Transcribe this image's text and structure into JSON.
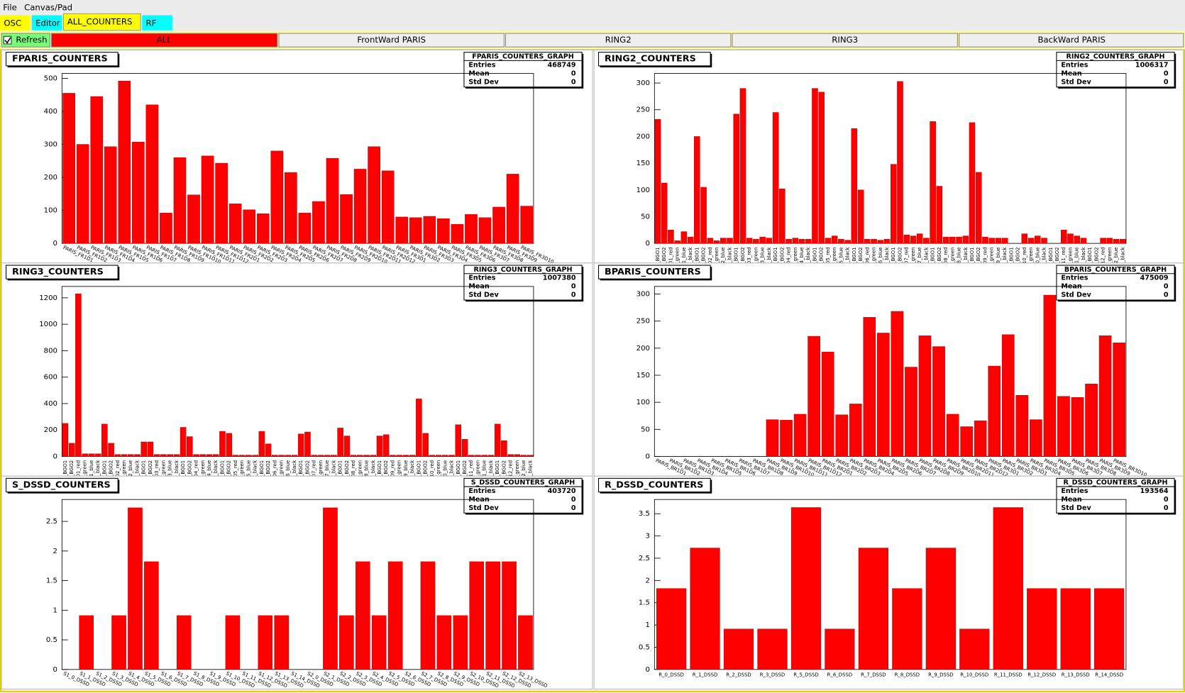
{
  "ui": {
    "menu": [
      "File",
      "Canvas/Pad"
    ],
    "tabs": [
      "OSC",
      "Editor",
      "ALL_COUNTERS",
      "RF"
    ],
    "refresh": "Refresh",
    "buttons": [
      "ALL",
      "FrontWard PARIS",
      "RING2",
      "RING3",
      "BackWard PARIS"
    ]
  },
  "chart_data": [
    {
      "type": "bar",
      "title": "FPARIS_COUNTERS",
      "color": "#ff0000",
      "stats": {
        "title": "FPARIS_COUNTERS_GRAPH",
        "rows": [
          {
            "label": "Entries",
            "value": 468749
          },
          {
            "label": "Mean",
            "value": 0
          },
          {
            "label": "Std Dev",
            "value": 0
          }
        ]
      },
      "categories": [
        "PARIS_FR1D1",
        "PARIS_FR1D2",
        "PARIS_FR1D3",
        "PARIS_FR1D4",
        "PARIS_FR1D5",
        "PARIS_FR1D6",
        "PARIS_FR1D7",
        "PARIS_FR1D8",
        "PARIS_FR1D9",
        "PARIS_FR1D10",
        "PARIS_FR1D11",
        "PARIS_FR1D12",
        "PARIS_FR2D1",
        "PARIS_FR2D2",
        "PARIS_FR2D3",
        "PARIS_FR2D4",
        "PARIS_FR2D5",
        "PARIS_FR2D6",
        "PARIS_FR2D7",
        "PARIS_FR2D8",
        "PARIS_FR2D9",
        "PARIS_FR2D10",
        "PARIS_FR2D11",
        "PARIS_FR2D12",
        "PARIS_FR3D1",
        "PARIS_FR3D2",
        "PARIS_FR3D3",
        "PARIS_FR3D4",
        "PARIS_FR3D5",
        "PARIS_FR3D6",
        "PARIS_FR3D7",
        "PARIS_FR3D8",
        "PARIS_FR3D9",
        "PARIS_FR3D10"
      ],
      "values": [
        455,
        300,
        445,
        293,
        492,
        307,
        420,
        92,
        260,
        147,
        265,
        243,
        120,
        102,
        90,
        280,
        215,
        92,
        127,
        258,
        148,
        225,
        293,
        220,
        80,
        78,
        82,
        75,
        58,
        88,
        78,
        110,
        210,
        113
      ],
      "ylim": [
        0,
        515
      ],
      "yticks": [
        0,
        100,
        200,
        300,
        400,
        500
      ]
    },
    {
      "type": "bar",
      "title": "RING2_COUNTERS",
      "color": "#ff0000",
      "stats": {
        "title": "RING2_COUNTERS_GRAPH",
        "rows": [
          {
            "label": "Entries",
            "value": 1006317
          },
          {
            "label": "Mean",
            "value": 0
          },
          {
            "label": "Std Dev",
            "value": 0
          }
        ]
      },
      "categories": [
        "D1_BGO1",
        "D1_BGO2",
        "D1_red",
        "D1_green",
        "D1_blue",
        "D1_black",
        "D2_BGO1",
        "D2_BGO2",
        "D2_red",
        "D2_green",
        "D2_blue",
        "D2_black",
        "D3_BGO1",
        "D3_BGO2",
        "D3_red",
        "D3_green",
        "D3_blue",
        "D3_black",
        "D4_BGO1",
        "D4_BGO2",
        "D4_red",
        "D4_green",
        "D4_blue",
        "D4_black",
        "D5_BGO1",
        "D5_BGO2",
        "D5_red",
        "D5_green",
        "D5_blue",
        "D5_black",
        "D6_BGO1",
        "D6_BGO2",
        "D6_red",
        "D6_green",
        "D6_blue",
        "D6_black",
        "D7_BGO1",
        "D7_BGO2",
        "D7_red",
        "D7_green",
        "D7_blue",
        "D7_black",
        "D8_BGO1",
        "D8_BGO2",
        "D8_red",
        "D8_green",
        "D8_blue",
        "D8_black",
        "D9_BGO1",
        "D9_BGO2",
        "D9_red",
        "D9_green",
        "D9_blue",
        "D9_black",
        "D10_BGO1",
        "D10_BGO2",
        "D10_red",
        "D10_green",
        "D10_blue",
        "D10_black",
        "D11_BGO1",
        "D11_BGO2",
        "D11_red",
        "D11_green",
        "D11_blue",
        "D11_black",
        "D12_BGO1",
        "D12_BGO2",
        "D12_red",
        "D12_green",
        "D12_blue",
        "D12_black"
      ],
      "values": [
        232,
        113,
        25,
        5,
        22,
        12,
        200,
        105,
        10,
        5,
        10,
        10,
        242,
        290,
        10,
        8,
        12,
        10,
        245,
        102,
        8,
        10,
        8,
        8,
        290,
        283,
        10,
        14,
        8,
        6,
        215,
        100,
        8,
        8,
        6,
        8,
        148,
        303,
        16,
        14,
        18,
        10,
        228,
        107,
        12,
        12,
        12,
        14,
        226,
        133,
        12,
        10,
        10,
        10,
        0,
        0,
        18,
        10,
        14,
        10,
        0,
        0,
        25,
        18,
        14,
        10,
        0,
        0,
        10,
        10,
        8,
        8
      ],
      "ylim": [
        0,
        318
      ],
      "yticks": [
        0,
        50,
        100,
        150,
        200,
        250,
        300
      ]
    },
    {
      "type": "bar",
      "title": "RING3_COUNTERS",
      "color": "#ff0000",
      "stats": {
        "title": "RING3_COUNTERS_GRAPH",
        "rows": [
          {
            "label": "Entries",
            "value": 1007380
          },
          {
            "label": "Mean",
            "value": 0
          },
          {
            "label": "Std Dev",
            "value": 0
          }
        ]
      },
      "categories": [
        "D1_BGO1",
        "D1_BGO2",
        "D1_red",
        "D1_green",
        "D1_blue",
        "D1_black",
        "D2_BGO1",
        "D2_BGO2",
        "D2_red",
        "D2_green",
        "D2_blue",
        "D2_black",
        "D3_BGO1",
        "D3_BGO2",
        "D3_red",
        "D3_green",
        "D3_blue",
        "D3_black",
        "D4_BGO1",
        "D4_BGO2",
        "D4_red",
        "D4_green",
        "D4_blue",
        "D4_black",
        "D5_BGO1",
        "D5_BGO2",
        "D5_red",
        "D5_green",
        "D5_blue",
        "D5_black",
        "D6_BGO1",
        "D6_BGO2",
        "D6_red",
        "D6_green",
        "D6_blue",
        "D6_black",
        "D7_BGO1",
        "D7_BGO2",
        "D7_red",
        "D7_green",
        "D7_blue",
        "D7_black",
        "D8_BGO1",
        "D8_BGO2",
        "D8_red",
        "D8_green",
        "D8_blue",
        "D8_black",
        "D9_BGO1",
        "D9_BGO2",
        "D9_red",
        "D9_green",
        "D9_blue",
        "D9_black",
        "D10_BGO1",
        "D10_BGO2",
        "D10_red",
        "D10_green",
        "D10_blue",
        "D10_black",
        "D11_BGO1",
        "D11_BGO2",
        "D11_red",
        "D11_green",
        "D11_blue",
        "D11_black",
        "D12_BGO1",
        "D12_BGO2",
        "D12_red",
        "D12_green",
        "D12_blue",
        "D12_black"
      ],
      "values": [
        250,
        100,
        1230,
        20,
        20,
        20,
        245,
        100,
        15,
        15,
        15,
        15,
        110,
        110,
        15,
        15,
        15,
        15,
        220,
        150,
        15,
        15,
        15,
        15,
        190,
        175,
        10,
        10,
        10,
        10,
        190,
        95,
        10,
        10,
        10,
        10,
        170,
        185,
        10,
        10,
        10,
        10,
        215,
        155,
        10,
        10,
        10,
        10,
        155,
        165,
        10,
        10,
        10,
        10,
        435,
        175,
        10,
        10,
        10,
        10,
        240,
        130,
        10,
        10,
        10,
        10,
        245,
        120,
        15,
        15,
        10,
        10
      ],
      "ylim": [
        0,
        1286
      ],
      "yticks": [
        0,
        200,
        400,
        600,
        800,
        1000,
        1200
      ]
    },
    {
      "type": "bar",
      "title": "BPARIS_COUNTERS",
      "color": "#ff0000",
      "stats": {
        "title": "BPARIS_COUNTERS_GRAPH",
        "rows": [
          {
            "label": "Entries",
            "value": 475009
          },
          {
            "label": "Mean",
            "value": 0
          },
          {
            "label": "Std Dev",
            "value": 0
          }
        ]
      },
      "categories": [
        "PARIS_BR1D1",
        "PARIS_BR1D2",
        "PARIS_BR1D3",
        "PARIS_BR1D4",
        "PARIS_BR1D5",
        "PARIS_BR1D6",
        "PARIS_BR1D7",
        "PARIS_BR1D8",
        "PARIS_BR1D9",
        "PARIS_BR1D10",
        "PARIS_BR1D11",
        "PARIS_BR1D12",
        "PARIS_BR2D1",
        "PARIS_BR2D2",
        "PARIS_BR2D3",
        "PARIS_BR2D4",
        "PARIS_BR2D5",
        "PARIS_BR2D6",
        "PARIS_BR2D7",
        "PARIS_BR2D8",
        "PARIS_BR2D9",
        "PARIS_BR2D10",
        "PARIS_BR2D11",
        "PARIS_BR2D12",
        "PARIS_BR3D1",
        "PARIS_BR3D2",
        "PARIS_BR3D3",
        "PARIS_BR3D4",
        "PARIS_BR3D5",
        "PARIS_BR3D6",
        "PARIS_BR3D7",
        "PARIS_BR3D8",
        "PARIS_BR3D9",
        "PARIS_BR3D10"
      ],
      "values": [
        0,
        0,
        0,
        0,
        0,
        0,
        0,
        0,
        68,
        67,
        78,
        222,
        193,
        77,
        97,
        257,
        228,
        268,
        165,
        223,
        203,
        78,
        55,
        66,
        167,
        225,
        113,
        68,
        298,
        111,
        109,
        134,
        223,
        210
      ],
      "ylim": [
        0,
        314
      ],
      "yticks": [
        0,
        50,
        100,
        150,
        200,
        250,
        300
      ]
    },
    {
      "type": "bar",
      "title": "S_DSSD_COUNTERS",
      "color": "#ff0000",
      "stats": {
        "title": "S_DSSD_COUNTERS_GRAPH",
        "rows": [
          {
            "label": "Entries",
            "value": 403720
          },
          {
            "label": "Mean",
            "value": 0
          },
          {
            "label": "Std Dev",
            "value": 0
          }
        ]
      },
      "categories": [
        "S1_0_DSSD",
        "S1_1_DSSD",
        "S1_2_DSSD",
        "S1_3_DSSD",
        "S1_4_DSSD",
        "S1_5_DSSD",
        "S1_6_DSSD",
        "S1_7_DSSD",
        "S1_8_DSSD",
        "S1_9_DSSD",
        "S1_10_DSSD",
        "S1_11_DSSD",
        "S1_12_DSSD",
        "S1_13_DSSD",
        "S1_14_DSSD",
        "S2_0_DSSD",
        "S2_1_DSSD",
        "S2_2_DSSD",
        "S2_3_DSSD",
        "S2_4_DSSD",
        "S2_5_DSSD",
        "S2_6_DSSD",
        "S2_7_DSSD",
        "S2_8_DSSD",
        "S2_9_DSSD",
        "S2_10_DSSD",
        "S2_11_DSSD",
        "S2_12_DSSD",
        "S2_13_DSSD"
      ],
      "values": [
        0,
        0.91,
        0,
        0.91,
        2.73,
        1.82,
        0,
        0.91,
        0,
        0,
        0.91,
        0,
        0.91,
        0.91,
        0,
        0,
        2.73,
        0.91,
        1.82,
        0.91,
        1.82,
        0,
        1.82,
        0.91,
        0.91,
        1.82,
        1.82,
        1.82,
        0.91
      ],
      "ylim": [
        0,
        2.87
      ],
      "yticks": [
        0,
        0.5,
        1,
        1.5,
        2,
        2.5
      ]
    },
    {
      "type": "bar",
      "title": "R_DSSD_COUNTERS",
      "color": "#ff0000",
      "stats": {
        "title": "R_DSSD_COUNTERS_GRAPH",
        "rows": [
          {
            "label": "Entries",
            "value": 193564
          },
          {
            "label": "Mean",
            "value": 0
          },
          {
            "label": "Std Dev",
            "value": 0
          }
        ]
      },
      "categories": [
        "R_0_DSSD",
        "R_1_DSSD",
        "R_2_DSSD",
        "R_3_DSSD",
        "R_5_DSSD",
        "R_6_DSSD",
        "R_7_DSSD",
        "R_8_DSSD",
        "R_9_DSSD",
        "R_10_DSSD",
        "R_11_DSSD",
        "R_12_DSSD",
        "R_13_DSSD",
        "R_14_DSSD"
      ],
      "values": [
        1.82,
        2.73,
        0.91,
        0.91,
        3.64,
        0.91,
        2.73,
        1.82,
        2.73,
        0.91,
        3.64,
        1.82,
        1.82,
        1.82
      ],
      "ylim": [
        0,
        3.82
      ],
      "yticks": [
        0,
        0.5,
        1,
        1.5,
        2,
        2.5,
        3,
        3.5
      ]
    }
  ]
}
